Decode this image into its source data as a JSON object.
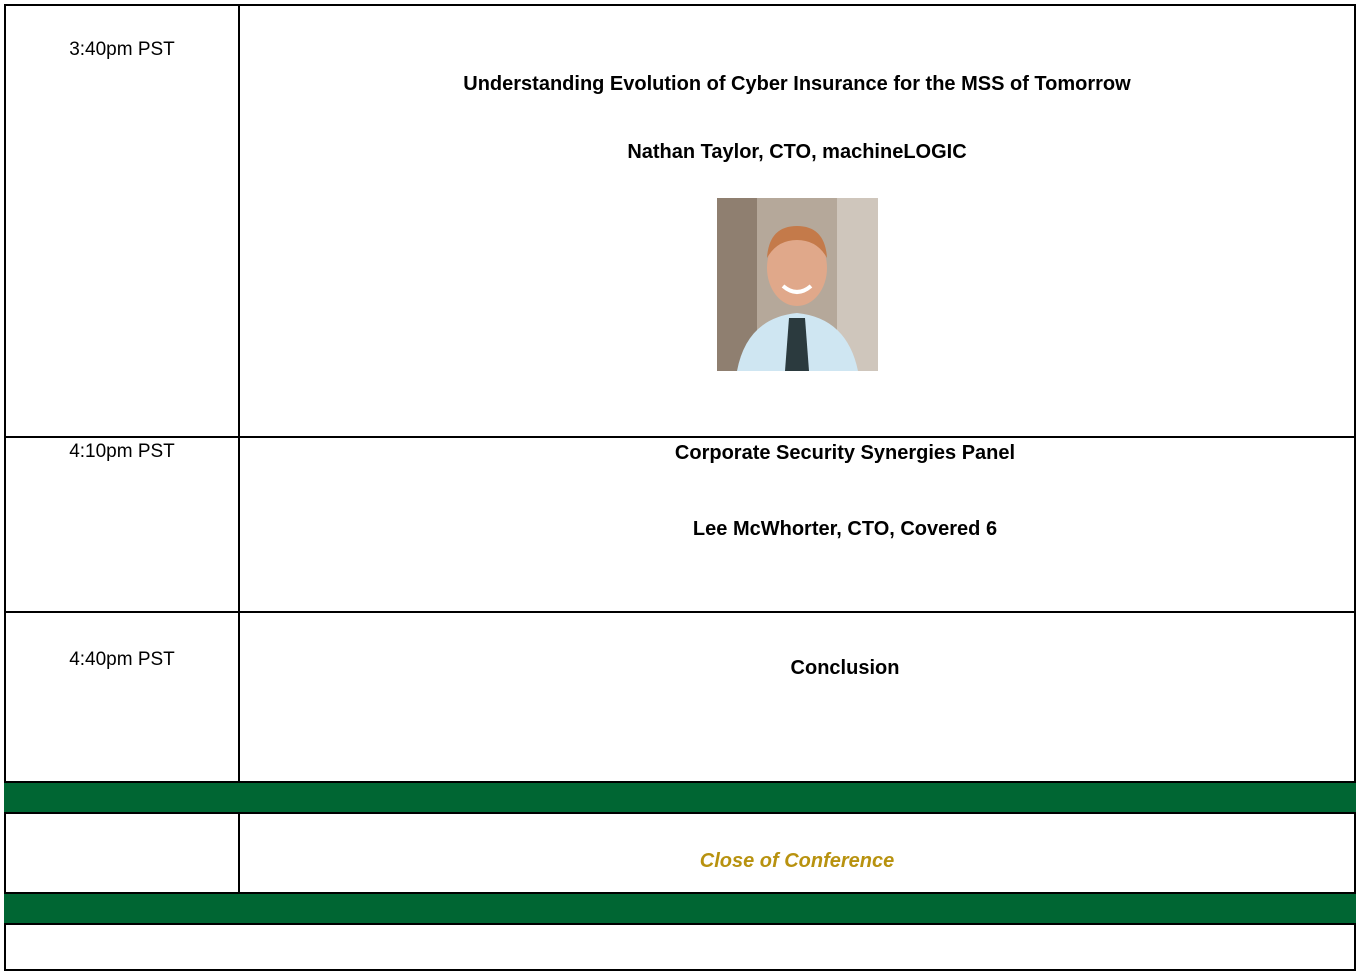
{
  "schedule": [
    {
      "time": "3:40pm PST",
      "title": "Understanding Evolution of Cyber Insurance for the MSS of Tomorrow",
      "speaker": "Nathan Taylor, CTO, machineLOGIC"
    },
    {
      "time": "4:10pm PST",
      "title": "Corporate Security Synergies Panel",
      "speaker": "Lee McWhorter, CTO, Covered 6"
    },
    {
      "time": "4:40pm PST",
      "title": "Conclusion"
    }
  ],
  "closing": "Close of Conference"
}
